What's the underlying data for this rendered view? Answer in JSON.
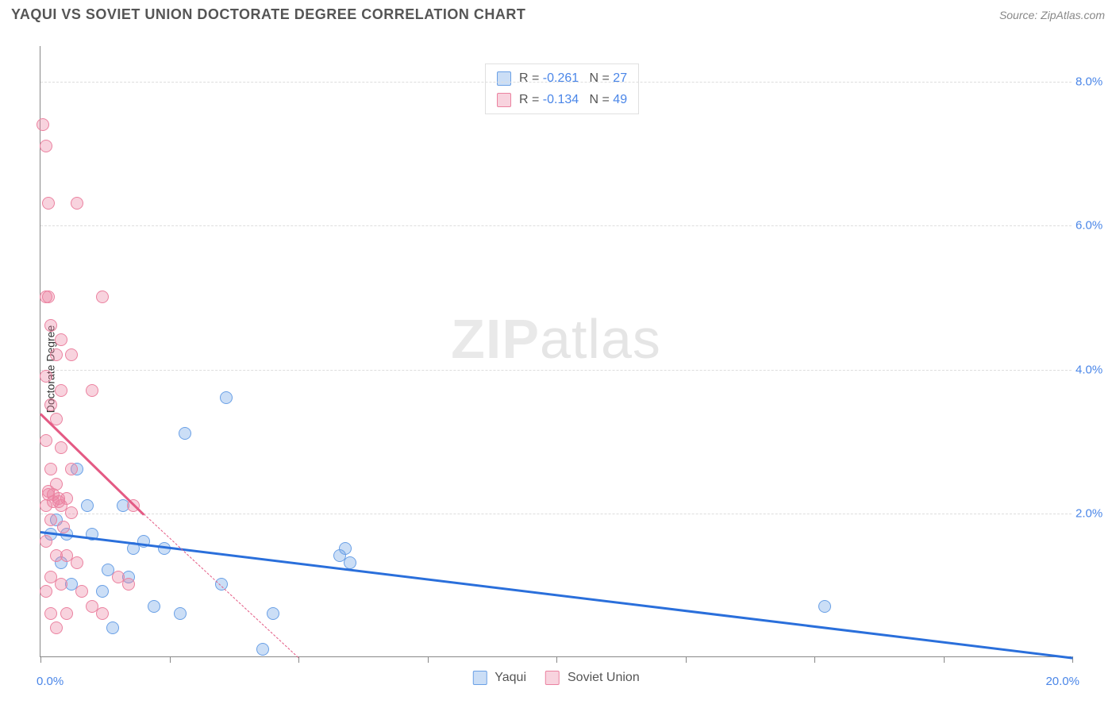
{
  "header": {
    "title": "YAQUI VS SOVIET UNION DOCTORATE DEGREE CORRELATION CHART",
    "source_label": "Source: ZipAtlas.com"
  },
  "chart": {
    "type": "scatter",
    "ylabel": "Doctorate Degree",
    "xlim": [
      0,
      20
    ],
    "ylim": [
      0,
      8.5
    ],
    "y_ticks": [
      2.0,
      4.0,
      6.0,
      8.0
    ],
    "y_tick_labels": [
      "2.0%",
      "4.0%",
      "6.0%",
      "8.0%"
    ],
    "x_tick_minor_positions": [
      0,
      2.5,
      5,
      7.5,
      10,
      12.5,
      15,
      17.5,
      20
    ],
    "x_axis_label_left": "0.0%",
    "x_axis_label_right": "20.0%",
    "background_color": "#ffffff",
    "grid_color": "#dddddd",
    "series": [
      {
        "id": "yaqui",
        "label": "Yaqui",
        "color_fill": "rgba(106,160,230,0.35)",
        "color_stroke": "#6aa0e6",
        "trend_color": "#2a6fdb",
        "trend_p1": [
          0,
          1.75
        ],
        "trend_p2": [
          20,
          0.0
        ],
        "R": "-0.261",
        "N": "27",
        "points": [
          [
            0.2,
            1.7
          ],
          [
            0.4,
            1.3
          ],
          [
            0.6,
            1.0
          ],
          [
            0.7,
            2.6
          ],
          [
            0.9,
            2.1
          ],
          [
            1.0,
            1.7
          ],
          [
            1.2,
            0.9
          ],
          [
            1.3,
            1.2
          ],
          [
            1.4,
            0.4
          ],
          [
            1.6,
            2.1
          ],
          [
            1.7,
            1.1
          ],
          [
            1.8,
            1.5
          ],
          [
            2.0,
            1.6
          ],
          [
            2.2,
            0.7
          ],
          [
            2.4,
            1.5
          ],
          [
            2.7,
            0.6
          ],
          [
            2.8,
            3.1
          ],
          [
            3.5,
            1.0
          ],
          [
            3.6,
            3.6
          ],
          [
            4.3,
            0.1
          ],
          [
            4.5,
            0.6
          ],
          [
            5.8,
            1.4
          ],
          [
            5.9,
            1.5
          ],
          [
            6.0,
            1.3
          ],
          [
            15.2,
            0.7
          ],
          [
            0.5,
            1.7
          ],
          [
            0.3,
            1.9
          ]
        ]
      },
      {
        "id": "soviet",
        "label": "Soviet Union",
        "color_fill": "rgba(235,130,160,0.35)",
        "color_stroke": "#eb82a0",
        "trend_color": "#e45a84",
        "trend_p1": [
          0,
          3.4
        ],
        "trend_p2": [
          2.0,
          2.0
        ],
        "trend_dash_p2": [
          5.0,
          0.0
        ],
        "R": "-0.134",
        "N": "49",
        "points": [
          [
            0.05,
            7.4
          ],
          [
            0.1,
            7.1
          ],
          [
            0.15,
            6.3
          ],
          [
            0.7,
            6.3
          ],
          [
            0.1,
            5.0
          ],
          [
            0.15,
            5.0
          ],
          [
            1.2,
            5.0
          ],
          [
            0.2,
            4.6
          ],
          [
            0.4,
            4.4
          ],
          [
            0.3,
            4.2
          ],
          [
            0.6,
            4.2
          ],
          [
            0.1,
            3.9
          ],
          [
            0.4,
            3.7
          ],
          [
            1.0,
            3.7
          ],
          [
            0.2,
            3.5
          ],
          [
            0.3,
            3.3
          ],
          [
            0.1,
            3.0
          ],
          [
            0.4,
            2.9
          ],
          [
            0.2,
            2.6
          ],
          [
            0.6,
            2.6
          ],
          [
            0.3,
            2.4
          ],
          [
            0.15,
            2.25
          ],
          [
            0.25,
            2.25
          ],
          [
            0.35,
            2.2
          ],
          [
            0.5,
            2.2
          ],
          [
            0.1,
            2.1
          ],
          [
            0.4,
            2.1
          ],
          [
            0.6,
            2.0
          ],
          [
            0.2,
            1.9
          ],
          [
            0.45,
            1.8
          ],
          [
            0.1,
            1.6
          ],
          [
            0.3,
            1.4
          ],
          [
            0.5,
            1.4
          ],
          [
            0.7,
            1.3
          ],
          [
            0.2,
            1.1
          ],
          [
            0.4,
            1.0
          ],
          [
            0.1,
            0.9
          ],
          [
            0.8,
            0.9
          ],
          [
            1.0,
            0.7
          ],
          [
            0.2,
            0.6
          ],
          [
            0.5,
            0.6
          ],
          [
            1.2,
            0.6
          ],
          [
            0.3,
            0.4
          ],
          [
            1.5,
            1.1
          ],
          [
            1.7,
            1.0
          ],
          [
            1.8,
            2.1
          ],
          [
            0.15,
            2.3
          ],
          [
            0.25,
            2.15
          ],
          [
            0.35,
            2.15
          ]
        ]
      }
    ],
    "watermark": {
      "strong": "ZIP",
      "light": "atlas"
    }
  },
  "legend_bottom": {
    "items": [
      {
        "swatch_fill": "rgba(106,160,230,0.35)",
        "swatch_stroke": "#6aa0e6",
        "label": "Yaqui"
      },
      {
        "swatch_fill": "rgba(235,130,160,0.35)",
        "swatch_stroke": "#eb82a0",
        "label": "Soviet Union"
      }
    ]
  }
}
